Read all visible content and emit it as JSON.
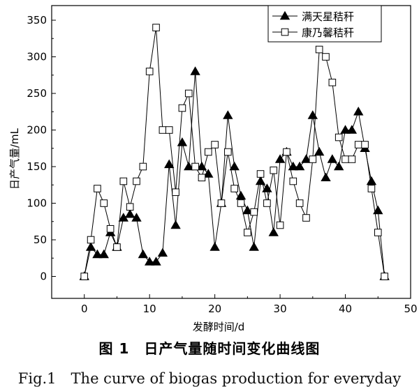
{
  "caption": {
    "cn": "图 1　日产气量随时间变化曲线图",
    "en": "Fig.1　The curve of biogas production for everyday"
  },
  "chart_data": {
    "type": "line",
    "title": "",
    "xlabel": "发酵时间/d",
    "ylabel": "日产气量/mL",
    "xlim": [
      -5,
      50
    ],
    "ylim": [
      -30,
      370
    ],
    "xticks": [
      0,
      10,
      20,
      30,
      40,
      50
    ],
    "yticks": [
      0,
      50,
      100,
      150,
      200,
      250,
      300,
      350
    ],
    "grid": false,
    "legend_position": "top-right",
    "series": [
      {
        "name": "满天星秸秆",
        "marker": "triangle-filled",
        "color": "#000000",
        "x": [
          0,
          1,
          2,
          3,
          4,
          5,
          6,
          7,
          8,
          9,
          10,
          11,
          12,
          13,
          14,
          15,
          16,
          17,
          18,
          19,
          20,
          21,
          22,
          23,
          24,
          25,
          26,
          27,
          28,
          29,
          30,
          31,
          32,
          33,
          34,
          35,
          36,
          37,
          38,
          39,
          40,
          41,
          42,
          43,
          44,
          45,
          46
        ],
        "y": [
          0,
          40,
          30,
          30,
          60,
          40,
          80,
          85,
          80,
          30,
          20,
          20,
          32,
          153,
          70,
          183,
          150,
          280,
          150,
          140,
          40,
          100,
          220,
          150,
          110,
          90,
          40,
          130,
          120,
          60,
          160,
          170,
          150,
          150,
          160,
          220,
          170,
          135,
          160,
          150,
          200,
          200,
          225,
          175,
          130,
          90,
          0
        ]
      },
      {
        "name": "康乃馨秸秆",
        "marker": "square-open",
        "color": "#000000",
        "x": [
          0,
          1,
          2,
          3,
          4,
          5,
          6,
          7,
          8,
          9,
          10,
          11,
          12,
          13,
          14,
          15,
          16,
          17,
          18,
          19,
          20,
          21,
          22,
          23,
          24,
          25,
          26,
          27,
          28,
          29,
          30,
          31,
          32,
          33,
          34,
          35,
          36,
          37,
          38,
          39,
          40,
          41,
          42,
          43,
          44,
          45,
          46
        ],
        "y": [
          0,
          50,
          120,
          100,
          65,
          40,
          130,
          95,
          130,
          150,
          280,
          340,
          200,
          200,
          115,
          230,
          250,
          150,
          135,
          170,
          180,
          100,
          170,
          120,
          100,
          60,
          88,
          140,
          100,
          145,
          70,
          170,
          130,
          100,
          80,
          160,
          310,
          300,
          265,
          190,
          160,
          160,
          180,
          180,
          120,
          60,
          0
        ]
      }
    ]
  }
}
